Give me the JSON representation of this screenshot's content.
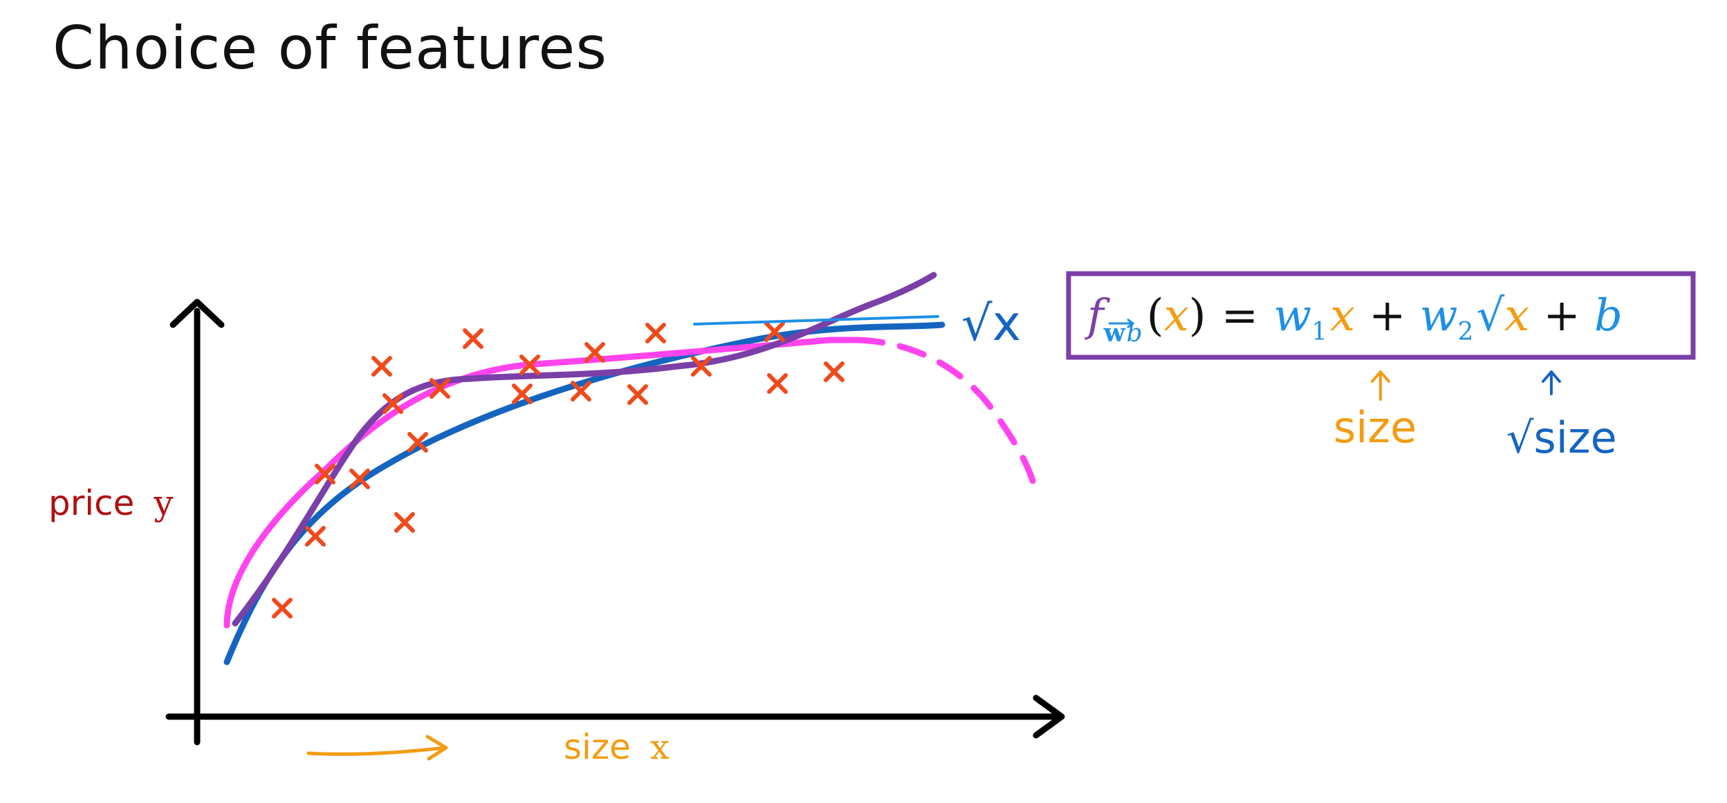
{
  "title": "Choice of features",
  "axes": {
    "y_label_word": "price",
    "y_label_var": "y",
    "x_label_word": "size",
    "x_label_var": "x"
  },
  "annotations": {
    "sqrt_x": "√x",
    "size_note": "size",
    "sqrt_size_note": "√size"
  },
  "formula": {
    "f": "f",
    "w_vec": "w",
    "b_sub": "b",
    "x_arg": "x",
    "open_paren": "(",
    "close_paren": ")",
    "equals": "=",
    "w1": "w",
    "w1_sub": "1",
    "x1": "x",
    "plus1": "+",
    "w2": "w",
    "w2_sub": "2",
    "sqrt_sym": "√",
    "x2": "x",
    "plus2": "+",
    "b": "b"
  },
  "colors": {
    "title": "#111111",
    "axis": "#000000",
    "price_label": "#b01010",
    "size_label": "#f39c12",
    "data_marker": "#f04a1c",
    "blue_curve": "#1565c0",
    "magenta_curve": "#ff44ee",
    "purple_curve": "#7b3fa8",
    "formula_box": "#7b3fa8",
    "formula_blue": "#1e90e6",
    "formula_orange": "#f39c12",
    "formula_purple": "#7b3fa8"
  }
}
